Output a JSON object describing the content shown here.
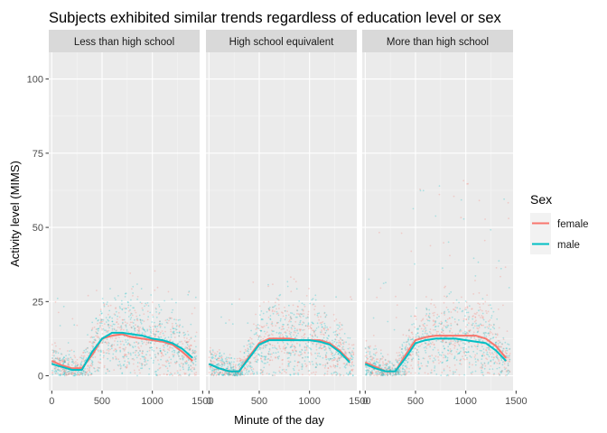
{
  "chart_data": {
    "type": "scatter",
    "title": "Subjects exhibited similar trends regardless of education level or sex",
    "xlabel": "Minute of the day",
    "ylabel": "Activity level (MIMS)",
    "xlim": [
      -30,
      1470
    ],
    "ylim": [
      -5,
      109
    ],
    "x_ticks": [
      0,
      500,
      1000,
      1500
    ],
    "x_tick_labels": [
      "0",
      "500",
      "1000",
      "1500"
    ],
    "y_ticks": [
      0,
      25,
      50,
      75,
      100
    ],
    "y_tick_labels": [
      "0",
      "25",
      "50",
      "75",
      "100"
    ],
    "grid": true,
    "legend": {
      "title": "Sex",
      "position": "right",
      "entries": [
        {
          "label": "female",
          "color": "#F8766D"
        },
        {
          "label": "male",
          "color": "#00BFC4"
        }
      ]
    },
    "panels": [
      {
        "label": "Less than high school",
        "series": [
          {
            "name": "female",
            "color": "#F8766D",
            "x": [
              0,
              100,
              200,
              300,
              400,
              500,
              600,
              700,
              800,
              900,
              1000,
              1100,
              1200,
              1300,
              1400
            ],
            "y": [
              5,
              3.5,
              2.5,
              2.5,
              7,
              12.5,
              13.5,
              14,
              13,
              12.5,
              12,
              11.5,
              10.5,
              8,
              5
            ]
          },
          {
            "name": "male",
            "color": "#00BFC4",
            "x": [
              0,
              100,
              200,
              300,
              400,
              500,
              600,
              700,
              800,
              900,
              1000,
              1100,
              1200,
              1300,
              1400
            ],
            "y": [
              4,
              3,
              2,
              2,
              8,
              12.5,
              14.5,
              14.5,
              14,
              13.5,
              12.5,
              12,
              11,
              9,
              6
            ]
          }
        ]
      },
      {
        "label": "High school equivalent",
        "series": [
          {
            "name": "female",
            "color": "#F8766D",
            "x": [
              0,
              100,
              200,
              300,
              400,
              500,
              600,
              700,
              800,
              900,
              1000,
              1100,
              1200,
              1300,
              1400
            ],
            "y": [
              4,
              2.5,
              1.5,
              1.5,
              6.5,
              11,
              12.5,
              12.5,
              12.5,
              12,
              12,
              12,
              11,
              8.5,
              5
            ]
          },
          {
            "name": "male",
            "color": "#00BFC4",
            "x": [
              0,
              100,
              200,
              300,
              400,
              500,
              600,
              700,
              800,
              900,
              1000,
              1100,
              1200,
              1300,
              1400
            ],
            "y": [
              4,
              2.5,
              1.5,
              1.5,
              6,
              10.5,
              12,
              12,
              12,
              12,
              12,
              11.5,
              10.5,
              8,
              4.5
            ]
          }
        ]
      },
      {
        "label": "More than high school",
        "series": [
          {
            "name": "female",
            "color": "#F8766D",
            "x": [
              0,
              100,
              200,
              300,
              400,
              500,
              600,
              700,
              800,
              900,
              1000,
              1100,
              1200,
              1300,
              1400
            ],
            "y": [
              4.5,
              3,
              1.5,
              1.5,
              7,
              12,
              13,
              13.5,
              13.5,
              13.5,
              13.5,
              13.5,
              12.5,
              10,
              6
            ]
          },
          {
            "name": "male",
            "color": "#00BFC4",
            "x": [
              0,
              100,
              200,
              300,
              400,
              500,
              600,
              700,
              800,
              900,
              1000,
              1100,
              1200,
              1300,
              1400
            ],
            "y": [
              4,
              2.5,
              1.5,
              1.5,
              6,
              11,
              12,
              12.5,
              12.5,
              12.5,
              12,
              11.5,
              11,
              8.5,
              5
            ]
          }
        ]
      }
    ]
  }
}
